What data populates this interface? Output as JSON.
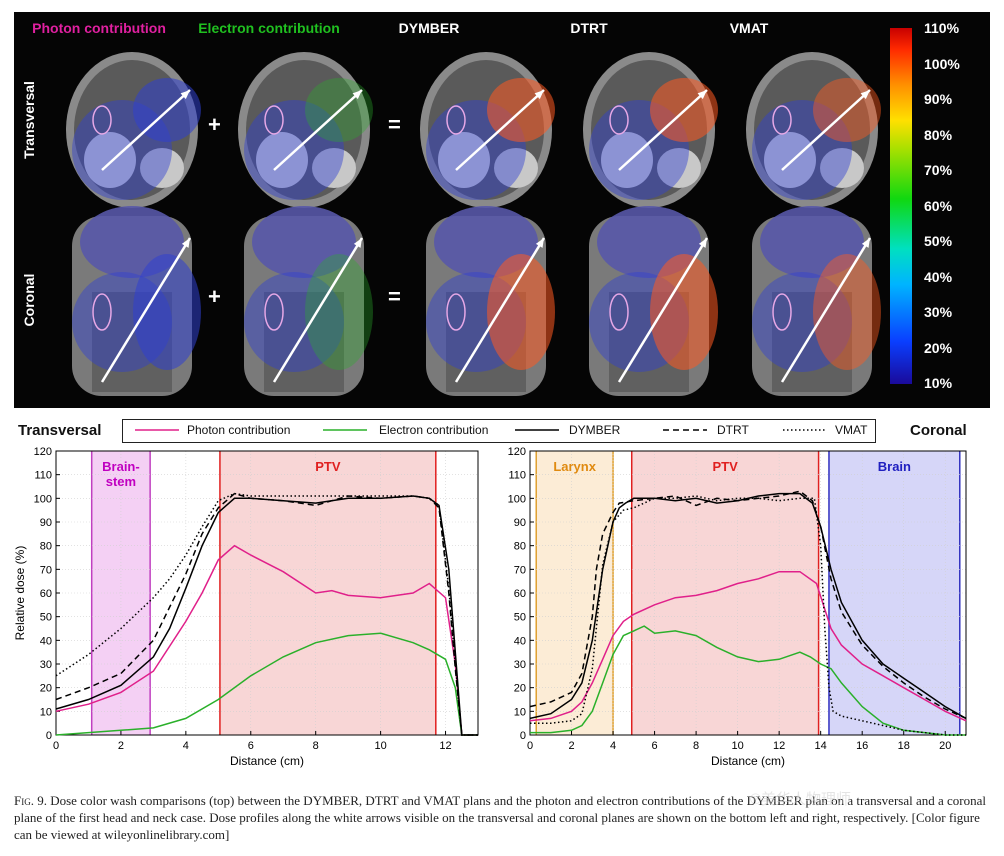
{
  "top_panel": {
    "columns": [
      {
        "title": "Photon contribution",
        "color": "#e020a0"
      },
      {
        "title": "Electron contribution",
        "color": "#20c020"
      },
      {
        "title": "DYMBER",
        "color": "#ffffff"
      },
      {
        "title": "DTRT",
        "color": "#ffffff"
      },
      {
        "title": "VMAT",
        "color": "#ffffff"
      }
    ],
    "rows": [
      "Transversal",
      "Coronal"
    ],
    "operators": [
      "+",
      "=",
      "+",
      "="
    ],
    "colorbar_ticks": [
      "110%",
      "100%",
      "90%",
      "80%",
      "70%",
      "60%",
      "50%",
      "40%",
      "30%",
      "20%",
      "10%"
    ]
  },
  "legend": {
    "left_title": "Transversal",
    "right_title": "Coronal",
    "items": [
      {
        "label": "Photon contribution",
        "color": "#e0208a",
        "dash": "solid"
      },
      {
        "label": "Electron contribution",
        "color": "#2ab02a",
        "dash": "solid"
      },
      {
        "label": "DYMBER",
        "color": "#000000",
        "dash": "solid"
      },
      {
        "label": "DTRT",
        "color": "#000000",
        "dash": "dashed"
      },
      {
        "label": "VMAT",
        "color": "#000000",
        "dash": "dotted"
      }
    ]
  },
  "chart_data": [
    {
      "type": "line",
      "xlabel": "Distance (cm)",
      "ylabel": "Relative dose (%)",
      "xlim": [
        0,
        13
      ],
      "ylim": [
        0,
        120
      ],
      "xticks": [
        0,
        2,
        4,
        6,
        8,
        10,
        12
      ],
      "yticks": [
        0,
        10,
        20,
        30,
        40,
        50,
        60,
        70,
        80,
        90,
        100,
        110,
        120
      ],
      "regions": [
        {
          "label": "Brain-\nstem",
          "x0": 1.1,
          "x1": 2.9,
          "fill": "#f0c0f0",
          "edge": "#c040c0",
          "text_color": "#c000c0"
        },
        {
          "label": "PTV",
          "x0": 5.05,
          "x1": 11.7,
          "fill": "#f6c8c8",
          "edge": "#e02020",
          "text_color": "#e02020"
        }
      ],
      "series": [
        {
          "name": "Photon contribution",
          "x": [
            0,
            1,
            2,
            3,
            4,
            4.5,
            5,
            5.5,
            6,
            7,
            8,
            8.5,
            9,
            10,
            11,
            11.5,
            12,
            12.3,
            12.5,
            13
          ],
          "y": [
            10,
            13,
            18,
            27,
            48,
            60,
            74,
            80,
            76,
            69,
            60,
            61,
            59,
            58,
            60,
            64,
            58,
            30,
            0,
            0
          ]
        },
        {
          "name": "Electron contribution",
          "x": [
            0,
            1,
            2,
            3,
            4,
            5,
            6,
            7,
            8,
            9,
            10,
            11,
            11.5,
            12,
            12.3,
            12.5,
            13
          ],
          "y": [
            0,
            1,
            2,
            3,
            7,
            15,
            25,
            33,
            39,
            42,
            43,
            39,
            36,
            32,
            20,
            0,
            0
          ]
        },
        {
          "name": "DYMBER",
          "x": [
            0,
            1,
            2,
            3,
            3.5,
            4,
            4.5,
            5,
            5.5,
            6,
            7,
            8,
            9,
            10,
            11,
            11.5,
            11.8,
            12.1,
            12.3,
            12.5,
            13
          ],
          "y": [
            11,
            15,
            21,
            33,
            45,
            62,
            80,
            94,
            100,
            100,
            99,
            98,
            100,
            100,
            101,
            100,
            97,
            70,
            35,
            0,
            0
          ]
        },
        {
          "name": "DTRT",
          "x": [
            0,
            1,
            2,
            3,
            3.5,
            4,
            4.5,
            5,
            5.5,
            6,
            7,
            8,
            9,
            10,
            11,
            11.5,
            11.8,
            12.1,
            12.3,
            12.5,
            13
          ],
          "y": [
            15,
            20,
            26,
            40,
            54,
            68,
            85,
            96,
            102,
            100,
            99,
            97,
            101,
            100,
            101,
            100,
            96,
            60,
            28,
            0,
            0
          ]
        },
        {
          "name": "VMAT",
          "x": [
            0,
            1,
            2,
            3,
            3.5,
            4,
            4.5,
            5,
            5.5,
            6,
            7,
            8,
            9,
            10,
            11,
            11.5,
            11.8,
            12.1,
            12.3,
            12.5,
            13
          ],
          "y": [
            25,
            34,
            45,
            58,
            66,
            76,
            88,
            99,
            102,
            101,
            101,
            101,
            101,
            101,
            101,
            100,
            97,
            62,
            30,
            0,
            0
          ]
        }
      ]
    },
    {
      "type": "line",
      "xlabel": "Distance (cm)",
      "ylabel": "",
      "xlim": [
        0,
        21
      ],
      "ylim": [
        0,
        120
      ],
      "xticks": [
        0,
        2,
        4,
        6,
        8,
        10,
        12,
        14,
        16,
        18,
        20
      ],
      "yticks": [
        0,
        10,
        20,
        30,
        40,
        50,
        60,
        70,
        80,
        90,
        100,
        110,
        120
      ],
      "regions": [
        {
          "label": "Larynx",
          "x0": 0.3,
          "x1": 4.0,
          "fill": "#fbe6c8",
          "edge": "#e0a030",
          "text_color": "#e08a10"
        },
        {
          "label": "PTV",
          "x0": 4.9,
          "x1": 13.9,
          "fill": "#f6c8c8",
          "edge": "#e02020",
          "text_color": "#e02020"
        },
        {
          "label": "Brain",
          "x0": 14.4,
          "x1": 20.7,
          "fill": "#c8c8f6",
          "edge": "#3030c0",
          "text_color": "#2020c0"
        }
      ],
      "series": [
        {
          "name": "Photon contribution",
          "x": [
            0,
            1,
            2,
            2.5,
            3,
            3.5,
            4,
            4.5,
            5,
            6,
            7,
            8,
            9,
            10,
            11,
            12,
            13,
            13.8,
            14.5,
            15,
            16,
            17,
            18,
            19,
            20,
            21
          ],
          "y": [
            6,
            7,
            10,
            14,
            22,
            32,
            42,
            48,
            51,
            55,
            58,
            59,
            61,
            64,
            66,
            69,
            69,
            64,
            45,
            38,
            30,
            25,
            20,
            15,
            10,
            6
          ]
        },
        {
          "name": "Electron contribution",
          "x": [
            0,
            1,
            2,
            2.5,
            3,
            3.5,
            4,
            4.5,
            5,
            5.5,
            6,
            7,
            8,
            9,
            10,
            11,
            12,
            13,
            13.5,
            14,
            14.5,
            15,
            16,
            17,
            18,
            19,
            20,
            21
          ],
          "y": [
            1,
            1,
            2,
            4,
            10,
            22,
            34,
            42,
            44,
            46,
            43,
            44,
            42,
            37,
            33,
            31,
            32,
            35,
            33,
            30,
            28,
            22,
            12,
            5,
            2,
            1,
            0,
            0
          ]
        },
        {
          "name": "DYMBER",
          "x": [
            0,
            1,
            2,
            2.5,
            3,
            3.5,
            4,
            4.3,
            4.6,
            5,
            6,
            7,
            8,
            9,
            10,
            11,
            12,
            13,
            13.6,
            14,
            14.5,
            15,
            16,
            17,
            18,
            19,
            20,
            21
          ],
          "y": [
            7,
            9,
            15,
            22,
            40,
            70,
            90,
            96,
            98,
            100,
            100,
            99,
            100,
            98,
            99,
            101,
            102,
            102,
            98,
            88,
            70,
            56,
            40,
            30,
            24,
            18,
            12,
            7
          ]
        },
        {
          "name": "DTRT",
          "x": [
            0,
            1,
            2,
            2.5,
            3,
            3.2,
            3.5,
            4,
            4.3,
            5,
            6,
            7,
            8,
            9,
            10,
            11,
            12,
            13,
            13.6,
            14,
            14.5,
            15,
            16,
            17,
            18,
            19,
            20,
            21
          ],
          "y": [
            12,
            14,
            18,
            26,
            50,
            70,
            85,
            94,
            98,
            99,
            100,
            101,
            97,
            100,
            99,
            100,
            101,
            103,
            99,
            88,
            66,
            52,
            38,
            29,
            22,
            16,
            11,
            7
          ]
        },
        {
          "name": "VMAT",
          "x": [
            0,
            1,
            2,
            2.5,
            3,
            3.5,
            4,
            4.5,
            5,
            6,
            7,
            8,
            9,
            10,
            11,
            12,
            13,
            13.7,
            14,
            14.2,
            14.4,
            14.6,
            15,
            16,
            17,
            18,
            19,
            20,
            21
          ],
          "y": [
            5,
            5,
            6,
            9,
            28,
            72,
            90,
            95,
            96,
            100,
            100,
            101,
            99,
            100,
            100,
            99,
            100,
            100,
            80,
            45,
            20,
            10,
            8,
            6,
            4,
            2,
            1,
            0,
            0
          ]
        }
      ]
    }
  ],
  "caption": {
    "fig_label": "Fig. 9.",
    "text": "Dose color wash comparisons (top) between the DYMBER, DTRT and VMAT plans and the photon and electron contributions of the DYMBER plan on a transversal and a coronal plane of the first head and neck case. Dose profiles along the white arrows visible on the transversal and coronal planes are shown on the bottom left and right, respectively. [Color figure can be viewed at wileyonlinelibrary.com]"
  },
  "watermark": "℗美华人物理师"
}
